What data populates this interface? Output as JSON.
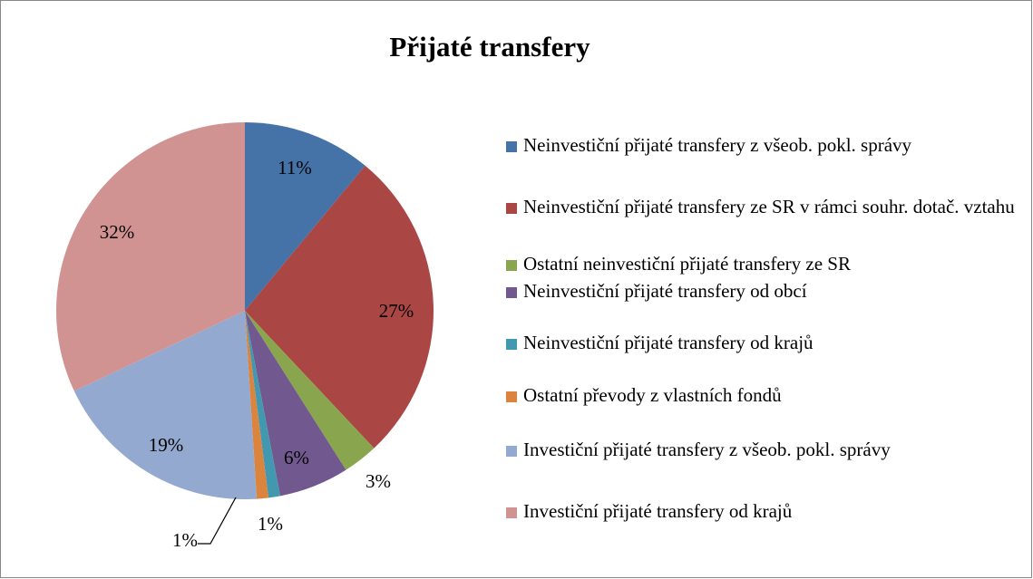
{
  "chart_data": {
    "type": "pie",
    "title": "Přijaté transfery",
    "categories": [
      "Neinvestiční přijaté transfery z všeob. pokl. správy",
      "Neinvestiční přijaté transfery ze SR v rámci souhr. dotač. vztahu",
      "Ostatní neinvestiční přijaté transfery ze SR",
      "Neinvestiční přijaté transfery od obcí",
      "Neinvestiční přijaté transfery od krajů",
      "Ostatní převody z vlastních fondů",
      "Investiční přijaté transfery z všeob. pokl. správy",
      "Investiční přijaté transfery od krajů"
    ],
    "values": [
      11,
      27,
      3,
      6,
      1,
      1,
      19,
      32
    ],
    "value_labels": [
      "11%",
      "27%",
      "3%",
      "6%",
      "1%",
      "1%",
      "19%",
      "32%"
    ],
    "colors": [
      "#4572a7",
      "#aa4643",
      "#89a54e",
      "#71588f",
      "#4198af",
      "#db843d",
      "#93a9cf",
      "#d19392"
    ],
    "legend": "right"
  }
}
